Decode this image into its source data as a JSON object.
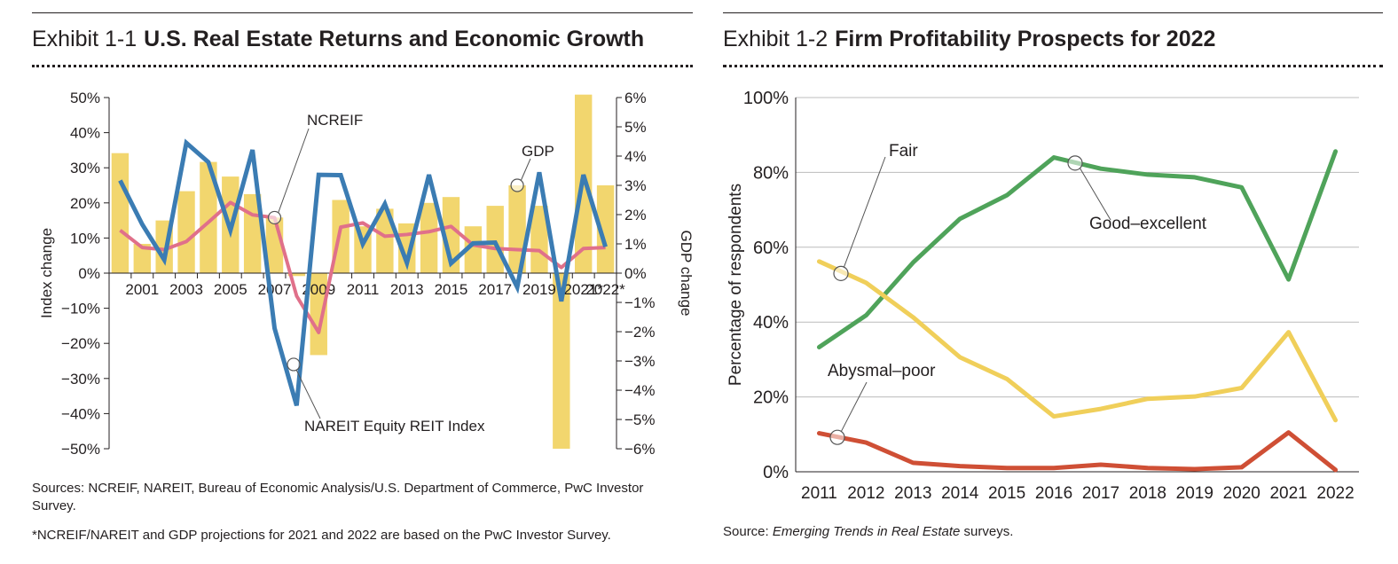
{
  "exhibit1": {
    "number": "Exhibit 1-1",
    "title": "U.S. Real Estate Returns and Economic Growth",
    "note_sources": "Sources: NCREIF, NAREIT, Bureau of Economic Analysis/U.S. Department of Commerce, PwC Investor Survey.",
    "note_projection": "*NCREIF/NAREIT and GDP projections for 2021 and 2022 are based on the PwC Investor Survey."
  },
  "exhibit2": {
    "number": "Exhibit 1-2",
    "title": "Firm Profitability Prospects for 2022",
    "source_prefix": "Source: ",
    "source_italic": "Emerging Trends in Real Estate",
    "source_suffix": " surveys."
  },
  "colors": {
    "gdp_bar": "#f2d66e",
    "ncreif": "#e0708a",
    "nareit": "#3b7cb3",
    "good_excellent": "#4fa35a",
    "fair": "#f0cf5a",
    "abysmal_poor": "#cf4f35",
    "grid": "#bcbcbc",
    "axis": "#231f20"
  },
  "chart_data": [
    {
      "type": "bar+line",
      "title": "U.S. Real Estate Returns and Economic Growth",
      "categories": [
        "2000",
        "2001",
        "2002",
        "2003",
        "2004",
        "2005",
        "2006",
        "2007",
        "2008",
        "2009",
        "2010",
        "2011",
        "2012",
        "2013",
        "2014",
        "2015",
        "2016",
        "2017",
        "2018",
        "2019",
        "2020",
        "2021*",
        "2022*"
      ],
      "x_tick_labels": [
        "2001",
        "2003",
        "2005",
        "2007",
        "2009",
        "2011",
        "2013",
        "2015",
        "2017",
        "2019",
        "2021*",
        "2022*"
      ],
      "ylabel": "Index change",
      "ylabel_right": "GDP change",
      "ylim": [
        -50,
        50
      ],
      "ylim_right": [
        -6,
        6
      ],
      "y_ticks": [
        "50%",
        "40%",
        "30%",
        "20%",
        "10%",
        "0%",
        "−10%",
        "−20%",
        "−30%",
        "−40%",
        "−50%"
      ],
      "y_ticks_right": [
        "6%",
        "5%",
        "4%",
        "3%",
        "2%",
        "1%",
        "0%",
        "−1%",
        "−2%",
        "−3%",
        "−4%",
        "−5%",
        "−6%"
      ],
      "series": [
        {
          "name": "GDP",
          "type": "bar",
          "axis": "right",
          "values": [
            4.1,
            1.0,
            1.8,
            2.8,
            3.8,
            3.3,
            2.7,
            1.9,
            -0.1,
            -2.8,
            2.5,
            1.6,
            2.2,
            1.7,
            2.4,
            2.6,
            1.6,
            2.3,
            3.0,
            2.3,
            -6.0,
            6.1,
            3.0
          ]
        },
        {
          "name": "NCREIF",
          "type": "line",
          "axis": "left",
          "values": [
            12.2,
            7.3,
            6.7,
            9.0,
            14.5,
            20.1,
            16.6,
            15.8,
            -6.5,
            -16.9,
            13.1,
            14.3,
            10.5,
            11.0,
            11.8,
            13.3,
            8.0,
            7.0,
            6.7,
            6.4,
            1.6,
            7.0,
            7.3
          ]
        },
        {
          "name": "NAREIT Equity REIT Index",
          "type": "line",
          "axis": "left",
          "values": [
            26.4,
            13.9,
            3.8,
            37.1,
            31.6,
            12.2,
            35.1,
            -15.7,
            -37.7,
            28.0,
            27.9,
            8.3,
            19.7,
            2.9,
            28.0,
            2.8,
            8.5,
            8.7,
            -4.0,
            28.7,
            -8.0,
            28.0,
            7.5
          ]
        }
      ],
      "annotations": [
        "NCREIF",
        "GDP",
        "NAREIT Equity REIT Index"
      ]
    },
    {
      "type": "line",
      "title": "Firm Profitability Prospects for 2022",
      "categories": [
        "2011",
        "2012",
        "2013",
        "2014",
        "2015",
        "2016",
        "2017",
        "2018",
        "2019",
        "2020",
        "2021",
        "2022"
      ],
      "ylabel": "Percentage of respondents",
      "ylim": [
        0,
        100
      ],
      "y_ticks": [
        "100%",
        "80%",
        "60%",
        "40%",
        "20%",
        "0%"
      ],
      "grid": true,
      "series": [
        {
          "name": "Good–excellent",
          "values": [
            33.3,
            41.8,
            55.9,
            67.6,
            73.9,
            84.0,
            81.0,
            79.4,
            78.7,
            76.0,
            51.4,
            85.6
          ]
        },
        {
          "name": "Fair",
          "values": [
            56.2,
            50.5,
            41.3,
            30.6,
            24.8,
            14.8,
            16.8,
            19.5,
            20.1,
            22.4,
            37.3,
            13.8
          ]
        },
        {
          "name": "Abysmal–poor",
          "values": [
            10.3,
            7.8,
            2.4,
            1.5,
            1.0,
            1.0,
            1.9,
            1.0,
            0.7,
            1.2,
            10.5,
            0.5
          ]
        }
      ],
      "annotations": [
        "Fair",
        "Good–excellent",
        "Abysmal–poor"
      ]
    }
  ]
}
